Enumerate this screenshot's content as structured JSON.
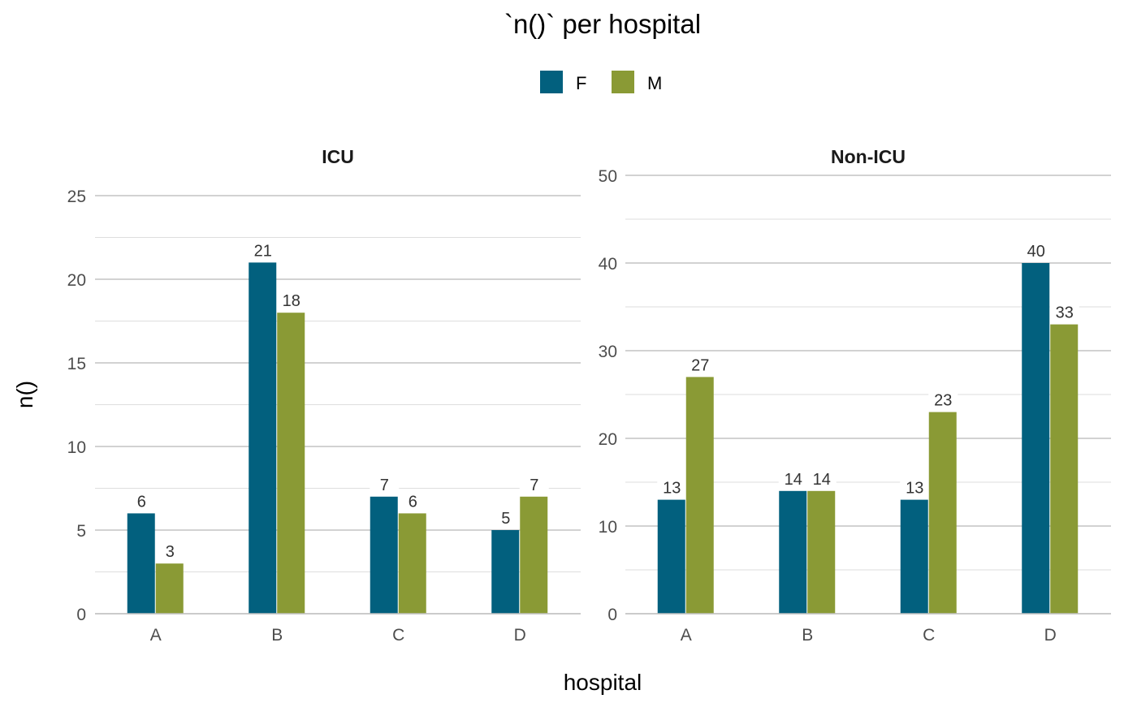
{
  "chart_data": {
    "type": "bar",
    "title": "`n()` per hospital",
    "xlabel": "hospital",
    "ylabel": "n()",
    "legend": {
      "position": "top",
      "entries": [
        {
          "name": "F",
          "color": "#02607e"
        },
        {
          "name": "M",
          "color": "#8a9a35"
        }
      ]
    },
    "grid": true,
    "panels": [
      {
        "name": "ICU",
        "categories": [
          "A",
          "B",
          "C",
          "D"
        ],
        "ylim": [
          0,
          25
        ],
        "yticks": [
          0,
          5,
          10,
          15,
          20,
          25
        ],
        "series": [
          {
            "name": "F",
            "values": [
              6,
              21,
              7,
              5
            ]
          },
          {
            "name": "M",
            "values": [
              3,
              18,
              6,
              7
            ]
          }
        ]
      },
      {
        "name": "Non-ICU",
        "categories": [
          "A",
          "B",
          "C",
          "D"
        ],
        "ylim": [
          0,
          50
        ],
        "yticks": [
          0,
          10,
          20,
          30,
          40,
          50
        ],
        "series": [
          {
            "name": "F",
            "values": [
              13,
              14,
              13,
              40
            ]
          },
          {
            "name": "M",
            "values": [
              27,
              14,
              23,
              33
            ]
          }
        ]
      }
    ]
  }
}
